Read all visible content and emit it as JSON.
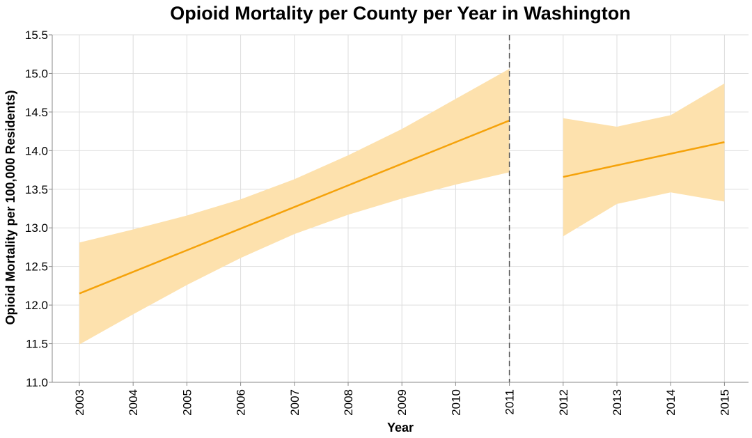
{
  "chart_data": {
    "type": "line",
    "title": "Opioid Mortality per County per Year in Washington",
    "xlabel": "Year",
    "ylabel": "Opioid Mortality per 100,000 Residents)",
    "ylim": [
      11.0,
      15.5
    ],
    "yticks": [
      "11.0",
      "11.5",
      "12.0",
      "12.5",
      "13.0",
      "13.5",
      "14.0",
      "14.5",
      "15.0",
      "15.5"
    ],
    "categories": [
      "2003",
      "2004",
      "2005",
      "2006",
      "2007",
      "2008",
      "2009",
      "2010",
      "2011",
      "2012",
      "2013",
      "2014",
      "2015"
    ],
    "grid": true,
    "colors": {
      "line": "#f5a20a",
      "band": "#fde1ad",
      "grid": "#dddddd",
      "rule": "#555555",
      "axis": "#888888"
    },
    "vertical_rule": {
      "x": "2011",
      "style": "dashed"
    },
    "series": [
      {
        "x": [
          "2003",
          "2004",
          "2005",
          "2006",
          "2007",
          "2008",
          "2009",
          "2010",
          "2011"
        ],
        "values": [
          12.15,
          12.43,
          12.71,
          12.99,
          13.27,
          13.55,
          13.83,
          14.11,
          14.39
        ],
        "lower": [
          11.49,
          11.88,
          12.26,
          12.61,
          12.92,
          13.17,
          13.38,
          13.56,
          13.72
        ],
        "upper": [
          12.81,
          12.98,
          13.16,
          13.37,
          13.63,
          13.94,
          14.28,
          14.67,
          15.06
        ]
      },
      {
        "x": [
          "2012",
          "2013",
          "2014",
          "2015"
        ],
        "values": [
          13.66,
          13.81,
          13.96,
          14.11
        ],
        "lower": [
          12.89,
          13.31,
          13.46,
          13.34
        ],
        "upper": [
          14.42,
          14.31,
          14.46,
          14.87
        ]
      }
    ]
  }
}
